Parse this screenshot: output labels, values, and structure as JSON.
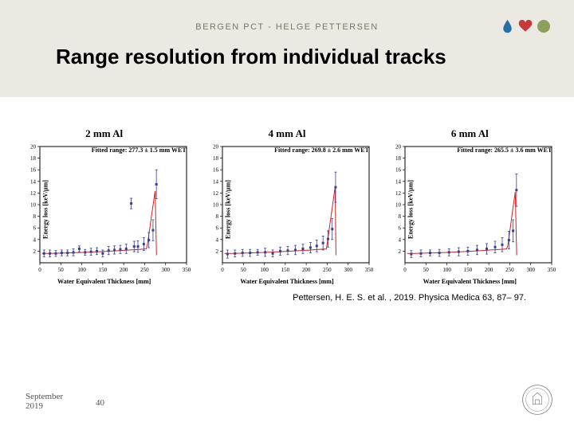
{
  "header": {
    "text": "BERGEN PCT - HELGE PETTERSEN"
  },
  "title": "Range resolution from individual tracks",
  "citation": "Pettersen, H. E. S. et al. , 2019. Physica Medica 63, 87– 97.",
  "footer": {
    "date_line1": "September",
    "date_line2": "2019",
    "page": "40"
  },
  "icons": {
    "drop_color": "#2a6ea6",
    "heart_color": "#c53a3a",
    "circle_color": "#8ba05d",
    "seal_stroke": "#777"
  },
  "axes": {
    "ylabel": "Energy loss [keV/μm]",
    "xlabel": "Water Equivalent Thickness [mm]",
    "xlim": [
      0,
      350
    ],
    "ylim": [
      0,
      20
    ],
    "xticks": [
      0,
      50,
      100,
      150,
      200,
      250,
      300,
      350
    ],
    "yticks": [
      2,
      4,
      6,
      8,
      10,
      12,
      14,
      16,
      18,
      20
    ],
    "frame_color": "#000000",
    "marker_fill": "#3a3f8c",
    "marker_size": 3,
    "errbar_color": "#3a3f8c",
    "curve_color": "#cc2222",
    "curve_width": 1
  },
  "panels": [
    {
      "title": "2 mm Al",
      "fit_label": "Fitted range: 277.3 ± 1.5 mm WET",
      "peak_x": 277.3,
      "points": [
        {
          "x": 10,
          "y": 1.6,
          "e": 0.6
        },
        {
          "x": 24,
          "y": 1.6,
          "e": 0.6
        },
        {
          "x": 38,
          "y": 1.6,
          "e": 0.5
        },
        {
          "x": 52,
          "y": 1.7,
          "e": 0.5
        },
        {
          "x": 66,
          "y": 1.7,
          "e": 0.5
        },
        {
          "x": 80,
          "y": 1.8,
          "e": 0.6
        },
        {
          "x": 94,
          "y": 2.4,
          "e": 0.5
        },
        {
          "x": 108,
          "y": 1.8,
          "e": 0.5
        },
        {
          "x": 122,
          "y": 1.9,
          "e": 0.6
        },
        {
          "x": 136,
          "y": 2.0,
          "e": 0.6
        },
        {
          "x": 150,
          "y": 1.6,
          "e": 0.6
        },
        {
          "x": 164,
          "y": 2.1,
          "e": 0.7
        },
        {
          "x": 178,
          "y": 2.2,
          "e": 0.7
        },
        {
          "x": 192,
          "y": 2.3,
          "e": 0.7
        },
        {
          "x": 206,
          "y": 2.4,
          "e": 0.8
        },
        {
          "x": 218,
          "y": 10.2,
          "e": 0.9
        },
        {
          "x": 225,
          "y": 2.8,
          "e": 0.9
        },
        {
          "x": 234,
          "y": 2.8,
          "e": 1.0
        },
        {
          "x": 248,
          "y": 3.2,
          "e": 1.1
        },
        {
          "x": 260,
          "y": 3.9,
          "e": 1.3
        },
        {
          "x": 270,
          "y": 5.6,
          "e": 1.8
        },
        {
          "x": 278,
          "y": 13.5,
          "e": 2.5
        }
      ]
    },
    {
      "title": "4 mm Al",
      "fit_label": "Fitted range: 269.8 ± 2.6 mm WET",
      "peak_x": 269.8,
      "points": [
        {
          "x": 12,
          "y": 1.5,
          "e": 0.7
        },
        {
          "x": 30,
          "y": 1.6,
          "e": 0.6
        },
        {
          "x": 48,
          "y": 1.7,
          "e": 0.6
        },
        {
          "x": 66,
          "y": 1.7,
          "e": 0.6
        },
        {
          "x": 84,
          "y": 1.8,
          "e": 0.5
        },
        {
          "x": 102,
          "y": 1.8,
          "e": 0.7
        },
        {
          "x": 120,
          "y": 1.6,
          "e": 0.6
        },
        {
          "x": 138,
          "y": 2.0,
          "e": 0.7
        },
        {
          "x": 156,
          "y": 2.1,
          "e": 0.7
        },
        {
          "x": 174,
          "y": 2.2,
          "e": 0.8
        },
        {
          "x": 192,
          "y": 2.4,
          "e": 0.8
        },
        {
          "x": 210,
          "y": 2.6,
          "e": 0.9
        },
        {
          "x": 225,
          "y": 2.9,
          "e": 1.0
        },
        {
          "x": 240,
          "y": 3.4,
          "e": 1.2
        },
        {
          "x": 252,
          "y": 4.1,
          "e": 1.4
        },
        {
          "x": 262,
          "y": 5.8,
          "e": 1.8
        },
        {
          "x": 270,
          "y": 13.0,
          "e": 2.6
        }
      ]
    },
    {
      "title": "6 mm Al",
      "fit_label": "Fitted range: 265.5 ± 3.6 mm WET",
      "peak_x": 265.5,
      "points": [
        {
          "x": 15,
          "y": 1.5,
          "e": 0.6
        },
        {
          "x": 38,
          "y": 1.6,
          "e": 0.6
        },
        {
          "x": 60,
          "y": 1.7,
          "e": 0.5
        },
        {
          "x": 82,
          "y": 1.7,
          "e": 0.6
        },
        {
          "x": 105,
          "y": 1.8,
          "e": 0.6
        },
        {
          "x": 128,
          "y": 1.9,
          "e": 0.7
        },
        {
          "x": 150,
          "y": 2.0,
          "e": 0.7
        },
        {
          "x": 172,
          "y": 2.2,
          "e": 0.8
        },
        {
          "x": 195,
          "y": 2.4,
          "e": 0.9
        },
        {
          "x": 215,
          "y": 2.7,
          "e": 1.0
        },
        {
          "x": 232,
          "y": 3.1,
          "e": 1.2
        },
        {
          "x": 248,
          "y": 3.9,
          "e": 1.5
        },
        {
          "x": 258,
          "y": 5.5,
          "e": 1.9
        },
        {
          "x": 266,
          "y": 12.5,
          "e": 2.8
        }
      ]
    }
  ]
}
